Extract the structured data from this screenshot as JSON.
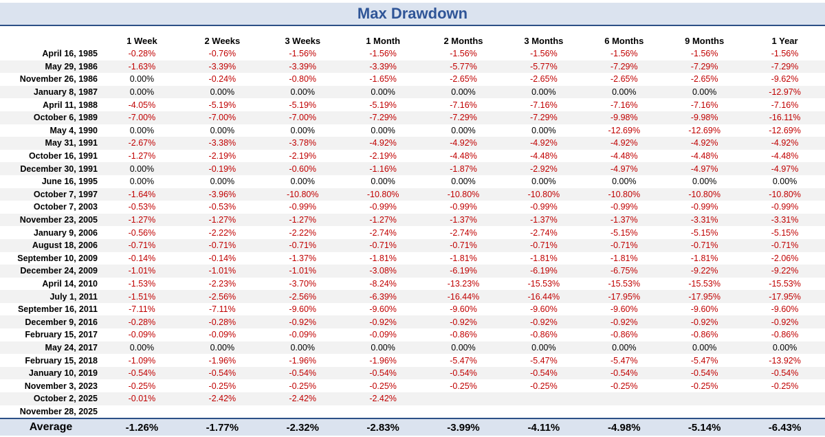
{
  "title": "Max Drawdown",
  "columns": [
    "1 Week",
    "2 Weeks",
    "3 Weeks",
    "1 Month",
    "2 Months",
    "3 Months",
    "6 Months",
    "9 Months",
    "1 Year"
  ],
  "rows": [
    {
      "date": "April 16, 1985",
      "values": [
        "-0.28%",
        "-0.76%",
        "-1.56%",
        "-1.56%",
        "-1.56%",
        "-1.56%",
        "-1.56%",
        "-1.56%",
        "-1.56%"
      ]
    },
    {
      "date": "May 29, 1986",
      "values": [
        "-1.63%",
        "-3.39%",
        "-3.39%",
        "-3.39%",
        "-5.77%",
        "-5.77%",
        "-7.29%",
        "-7.29%",
        "-7.29%"
      ]
    },
    {
      "date": "November 26, 1986",
      "values": [
        "0.00%",
        "-0.24%",
        "-0.80%",
        "-1.65%",
        "-2.65%",
        "-2.65%",
        "-2.65%",
        "-2.65%",
        "-9.62%"
      ]
    },
    {
      "date": "January 8, 1987",
      "values": [
        "0.00%",
        "0.00%",
        "0.00%",
        "0.00%",
        "0.00%",
        "0.00%",
        "0.00%",
        "0.00%",
        "-12.97%"
      ]
    },
    {
      "date": "April 11, 1988",
      "values": [
        "-4.05%",
        "-5.19%",
        "-5.19%",
        "-5.19%",
        "-7.16%",
        "-7.16%",
        "-7.16%",
        "-7.16%",
        "-7.16%"
      ]
    },
    {
      "date": "October 6, 1989",
      "values": [
        "-7.00%",
        "-7.00%",
        "-7.00%",
        "-7.29%",
        "-7.29%",
        "-7.29%",
        "-9.98%",
        "-9.98%",
        "-16.11%"
      ]
    },
    {
      "date": "May 4, 1990",
      "values": [
        "0.00%",
        "0.00%",
        "0.00%",
        "0.00%",
        "0.00%",
        "0.00%",
        "-12.69%",
        "-12.69%",
        "-12.69%"
      ]
    },
    {
      "date": "May 31, 1991",
      "values": [
        "-2.67%",
        "-3.38%",
        "-3.78%",
        "-4.92%",
        "-4.92%",
        "-4.92%",
        "-4.92%",
        "-4.92%",
        "-4.92%"
      ]
    },
    {
      "date": "October 16, 1991",
      "values": [
        "-1.27%",
        "-2.19%",
        "-2.19%",
        "-2.19%",
        "-4.48%",
        "-4.48%",
        "-4.48%",
        "-4.48%",
        "-4.48%"
      ]
    },
    {
      "date": "December 30, 1991",
      "values": [
        "0.00%",
        "-0.19%",
        "-0.60%",
        "-1.16%",
        "-1.87%",
        "-2.92%",
        "-4.97%",
        "-4.97%",
        "-4.97%"
      ]
    },
    {
      "date": "June 16, 1995",
      "values": [
        "0.00%",
        "0.00%",
        "0.00%",
        "0.00%",
        "0.00%",
        "0.00%",
        "0.00%",
        "0.00%",
        "0.00%"
      ]
    },
    {
      "date": "October 7, 1997",
      "values": [
        "-1.64%",
        "-3.96%",
        "-10.80%",
        "-10.80%",
        "-10.80%",
        "-10.80%",
        "-10.80%",
        "-10.80%",
        "-10.80%"
      ]
    },
    {
      "date": "October 7, 2003",
      "values": [
        "-0.53%",
        "-0.53%",
        "-0.99%",
        "-0.99%",
        "-0.99%",
        "-0.99%",
        "-0.99%",
        "-0.99%",
        "-0.99%"
      ]
    },
    {
      "date": "November 23, 2005",
      "values": [
        "-1.27%",
        "-1.27%",
        "-1.27%",
        "-1.27%",
        "-1.37%",
        "-1.37%",
        "-1.37%",
        "-3.31%",
        "-3.31%"
      ]
    },
    {
      "date": "January 9, 2006",
      "values": [
        "-0.56%",
        "-2.22%",
        "-2.22%",
        "-2.74%",
        "-2.74%",
        "-2.74%",
        "-5.15%",
        "-5.15%",
        "-5.15%"
      ]
    },
    {
      "date": "August 18, 2006",
      "values": [
        "-0.71%",
        "-0.71%",
        "-0.71%",
        "-0.71%",
        "-0.71%",
        "-0.71%",
        "-0.71%",
        "-0.71%",
        "-0.71%"
      ]
    },
    {
      "date": "September 10, 2009",
      "values": [
        "-0.14%",
        "-0.14%",
        "-1.37%",
        "-1.81%",
        "-1.81%",
        "-1.81%",
        "-1.81%",
        "-1.81%",
        "-2.06%"
      ]
    },
    {
      "date": "December 24, 2009",
      "values": [
        "-1.01%",
        "-1.01%",
        "-1.01%",
        "-3.08%",
        "-6.19%",
        "-6.19%",
        "-6.75%",
        "-9.22%",
        "-9.22%"
      ]
    },
    {
      "date": "April 14, 2010",
      "values": [
        "-1.53%",
        "-2.23%",
        "-3.70%",
        "-8.24%",
        "-13.23%",
        "-15.53%",
        "-15.53%",
        "-15.53%",
        "-15.53%"
      ]
    },
    {
      "date": "July 1, 2011",
      "values": [
        "-1.51%",
        "-2.56%",
        "-2.56%",
        "-6.39%",
        "-16.44%",
        "-16.44%",
        "-17.95%",
        "-17.95%",
        "-17.95%"
      ]
    },
    {
      "date": "September 16, 2011",
      "values": [
        "-7.11%",
        "-7.11%",
        "-9.60%",
        "-9.60%",
        "-9.60%",
        "-9.60%",
        "-9.60%",
        "-9.60%",
        "-9.60%"
      ]
    },
    {
      "date": "December 9, 2016",
      "values": [
        "-0.28%",
        "-0.28%",
        "-0.92%",
        "-0.92%",
        "-0.92%",
        "-0.92%",
        "-0.92%",
        "-0.92%",
        "-0.92%"
      ]
    },
    {
      "date": "February 15, 2017",
      "values": [
        "-0.09%",
        "-0.09%",
        "-0.09%",
        "-0.09%",
        "-0.86%",
        "-0.86%",
        "-0.86%",
        "-0.86%",
        "-0.86%"
      ]
    },
    {
      "date": "May 24, 2017",
      "values": [
        "0.00%",
        "0.00%",
        "0.00%",
        "0.00%",
        "0.00%",
        "0.00%",
        "0.00%",
        "0.00%",
        "0.00%"
      ]
    },
    {
      "date": "February 15, 2018",
      "values": [
        "-1.09%",
        "-1.96%",
        "-1.96%",
        "-1.96%",
        "-5.47%",
        "-5.47%",
        "-5.47%",
        "-5.47%",
        "-13.92%"
      ]
    },
    {
      "date": "January 10, 2019",
      "values": [
        "-0.54%",
        "-0.54%",
        "-0.54%",
        "-0.54%",
        "-0.54%",
        "-0.54%",
        "-0.54%",
        "-0.54%",
        "-0.54%"
      ]
    },
    {
      "date": "November 3, 2023",
      "values": [
        "-0.25%",
        "-0.25%",
        "-0.25%",
        "-0.25%",
        "-0.25%",
        "-0.25%",
        "-0.25%",
        "-0.25%",
        "-0.25%"
      ]
    },
    {
      "date": "October 2, 2025",
      "values": [
        "-0.01%",
        "-2.42%",
        "-2.42%",
        "-2.42%",
        "",
        "",
        "",
        "",
        ""
      ]
    },
    {
      "date": "November 28, 2025",
      "values": [
        "",
        "",
        "",
        "",
        "",
        "",
        "",
        "",
        ""
      ]
    }
  ],
  "average": {
    "label": "Average",
    "values": [
      "-1.26%",
      "-1.77%",
      "-2.32%",
      "-2.83%",
      "-3.99%",
      "-4.11%",
      "-4.98%",
      "-5.14%",
      "-6.43%"
    ]
  },
  "colors": {
    "negative": "#c00000",
    "zero": "#000000",
    "header_bg": "#dbe3ef",
    "accent": "#2f5597",
    "alt_row": "#f2f2f2"
  }
}
